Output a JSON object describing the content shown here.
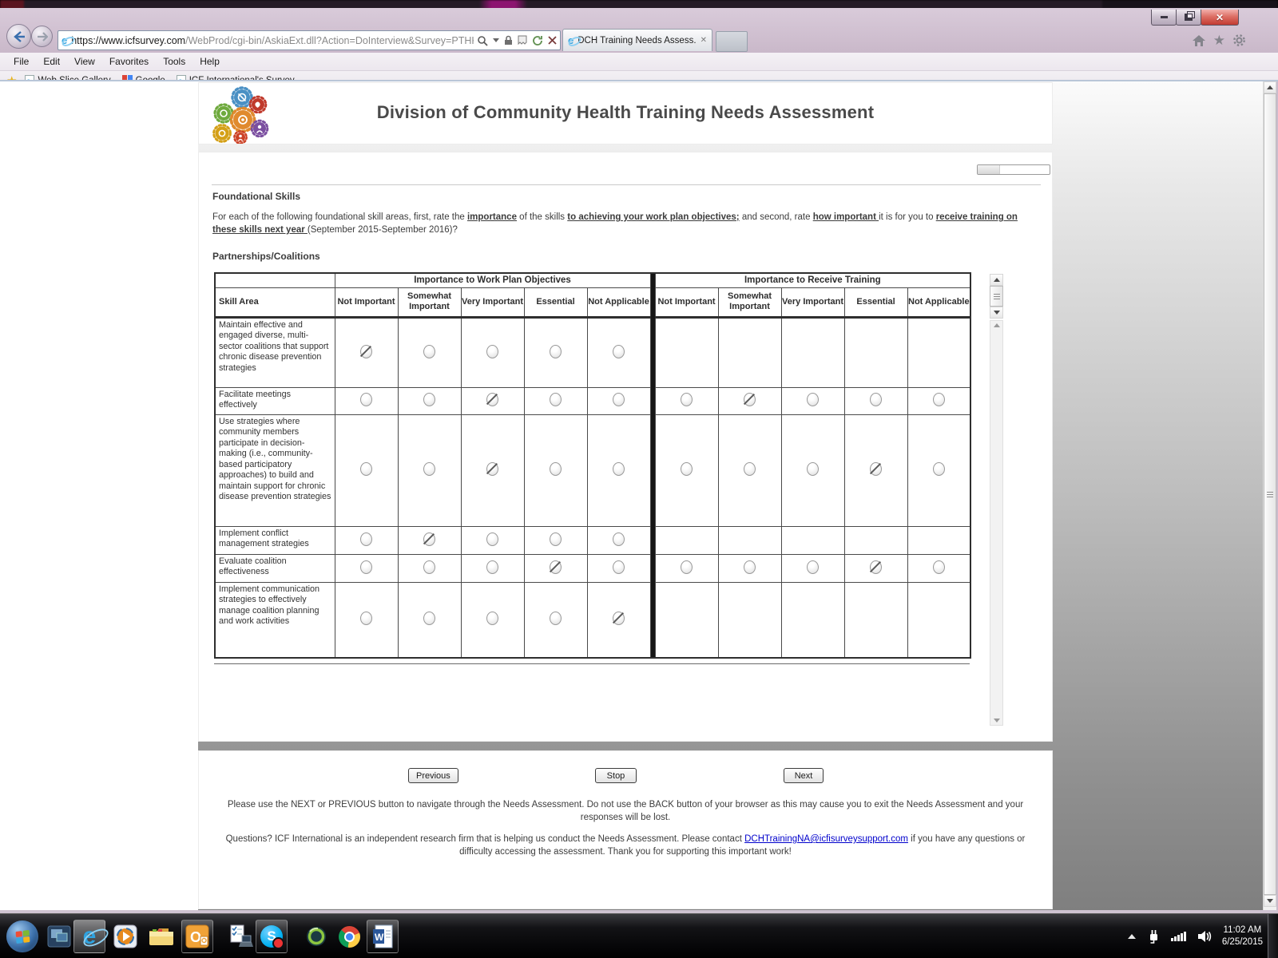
{
  "browser": {
    "url_domain": "https://www.icfsurvey.com",
    "url_path": "/WebProd/cgi-bin/AskiaExt.dll?Action=DoInterview&Survey=PTHKFV",
    "tab_title": "DCH Training Needs Assess...",
    "menu_items": [
      "File",
      "Edit",
      "View",
      "Favorites",
      "Tools",
      "Help"
    ],
    "favorites_items": [
      "Web Slice Gallery",
      "Google",
      "ICF International's Survey ..."
    ]
  },
  "page": {
    "title": "Division of Community Health Training Needs Assessment",
    "progress_percent": 30,
    "section_heading": "Foundational Skills",
    "instructions": {
      "p1": "For each of the following foundational skill areas, first, rate the ",
      "b1": "importance",
      "p2": " of the skills ",
      "b2": "to achieving your work plan objectives;",
      "p3": " and second, rate ",
      "b3": "how important ",
      "p4": "it is for you to ",
      "b4": "receive training on these skills next year ",
      "p5": "(September 2015-September 2016)?"
    },
    "subsection_heading": "Partnerships/Coalitions"
  },
  "survey_table": {
    "skill_area_header": "Skill Area",
    "groups": [
      "Importance to Work Plan Objectives",
      "Importance to Receive Training"
    ],
    "rating_columns": [
      "Not Important",
      "Somewhat Important",
      "Very Important",
      "Essential",
      "Not Applicable"
    ],
    "rows": [
      {
        "skill": "Maintain effective and engaged diverse, multi-sector coalitions that support chronic disease prevention strategies",
        "work_plan": {
          "selected": 0
        },
        "training": {
          "has_options": false,
          "selected": null
        }
      },
      {
        "skill": "Facilitate meetings effectively",
        "work_plan": {
          "selected": 2
        },
        "training": {
          "has_options": true,
          "selected": 1
        }
      },
      {
        "skill": "Use strategies where community members participate in decision-making (i.e., community-based participatory approaches) to build and maintain support for chronic disease prevention strategies",
        "work_plan": {
          "selected": 2
        },
        "training": {
          "has_options": true,
          "selected": 3
        }
      },
      {
        "skill": "Implement conflict management strategies",
        "work_plan": {
          "selected": 1
        },
        "training": {
          "has_options": false,
          "selected": null
        }
      },
      {
        "skill": "Evaluate coalition effectiveness",
        "work_plan": {
          "selected": 3
        },
        "training": {
          "has_options": true,
          "selected": 3
        }
      },
      {
        "skill": "Implement communication strategies to effectively manage coalition planning and work activities",
        "work_plan": {
          "selected": 4
        },
        "training": {
          "has_options": false,
          "selected": null
        }
      }
    ]
  },
  "nav_buttons": {
    "previous": "Previous",
    "stop": "Stop",
    "next": "Next"
  },
  "notes": {
    "note1": "Please use the NEXT or PREVIOUS button to navigate through the Needs Assessment. Do not use the BACK button of your browser as this may cause you to exit the Needs Assessment and your responses will be lost.",
    "note2_before": "Questions? ICF International is an independent research firm that is helping us conduct the Needs Assessment. Please contact ",
    "note2_link": "DCHTrainingNA@icfisurveysupport.com",
    "note2_after": " if you have any questions or difficulty accessing the assessment. Thank you for supporting this important work!"
  },
  "taskbar": {
    "time": "11:02 AM",
    "date": "6/25/2015"
  },
  "colors": {
    "link": "#0000cc",
    "glass": "#c9b7ca",
    "table_border": "#2e2e2e",
    "selected_slash": "#5a5a5a"
  }
}
